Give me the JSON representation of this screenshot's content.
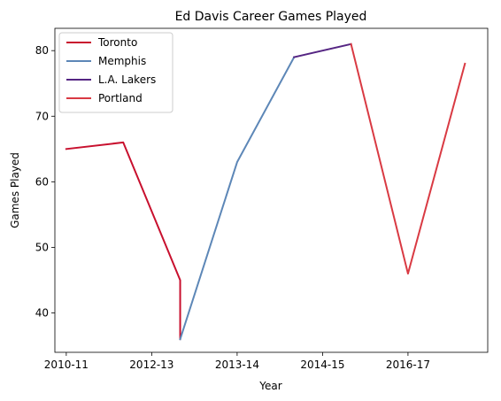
{
  "chart_data": {
    "type": "line",
    "title": "Ed Davis  Career Games Played",
    "xlabel": "Year",
    "ylabel": "Games Played",
    "ylim": [
      34,
      83.4
    ],
    "yticks": [
      40,
      50,
      60,
      70,
      80
    ],
    "xlim": [
      -0.2,
      7.4
    ],
    "xticks": [
      {
        "x": 0,
        "label": "2010-11"
      },
      {
        "x": 1.5,
        "label": "2012-13"
      },
      {
        "x": 3,
        "label": "2013-14"
      },
      {
        "x": 4.5,
        "label": "2014-15"
      },
      {
        "x": 6,
        "label": "2016-17"
      }
    ],
    "grid": false,
    "legend_position": "top-left",
    "series": [
      {
        "name": "Toronto",
        "color": "#c8102e",
        "x": [
          0,
          1,
          2,
          2
        ],
        "y": [
          65,
          66,
          45,
          36
        ]
      },
      {
        "name": "Memphis",
        "color": "#5d87b7",
        "x": [
          2,
          3,
          4
        ],
        "y": [
          36,
          63,
          79
        ]
      },
      {
        "name": "L.A. Lakers",
        "color": "#552583",
        "x": [
          4,
          5
        ],
        "y": [
          79,
          81
        ]
      },
      {
        "name": "Portland",
        "color": "#d93a43",
        "x": [
          5,
          6,
          7
        ],
        "y": [
          81,
          46,
          78
        ]
      }
    ]
  }
}
